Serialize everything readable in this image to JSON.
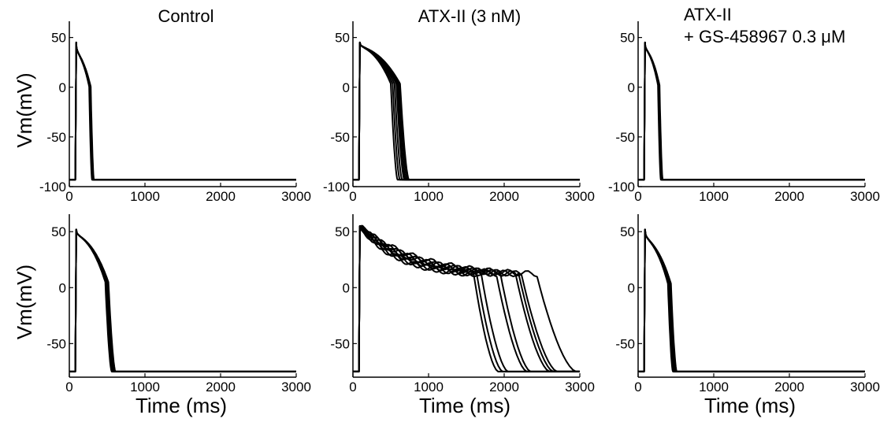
{
  "colors": {
    "trace": "#000000",
    "background": "#ffffff"
  },
  "chart_data": [
    {
      "type": "line",
      "panel": "top-left",
      "row": 0,
      "col": 0,
      "title_lines": [
        "Control"
      ],
      "xlabel": "",
      "ylabel": "Vm(mV)",
      "xlim": [
        0,
        3000
      ],
      "ylim": [
        -100,
        60
      ],
      "xticks": [
        0,
        1000,
        2000,
        3000
      ],
      "xtick_labels": [
        "0",
        "1000",
        "2000",
        "3000"
      ],
      "yticks": [
        50,
        0,
        -50,
        -100
      ],
      "ytick_labels": [
        "50",
        "0",
        "-50",
        "-100"
      ],
      "stim_time": 80,
      "rest": -93,
      "peak": 45,
      "plateau": 25,
      "apd_ms": [
        300,
        305,
        310,
        315,
        320,
        325
      ]
    },
    {
      "type": "line",
      "panel": "top-middle",
      "row": 0,
      "col": 1,
      "title_lines": [
        "ATX-II (3 nM)"
      ],
      "xlabel": "",
      "ylabel": "",
      "xlim": [
        0,
        3000
      ],
      "ylim": [
        -100,
        60
      ],
      "xticks": [
        0,
        1000,
        2000,
        3000
      ],
      "xtick_labels": [
        "0",
        "1000",
        "2000",
        "3000"
      ],
      "yticks": [
        50,
        0,
        -50,
        -100
      ],
      "ytick_labels": [
        "50",
        "0",
        "-50",
        "-100"
      ],
      "stim_time": 80,
      "rest": -93,
      "peak": 45,
      "plateau": 35,
      "apd_ms": [
        590,
        620,
        650,
        680,
        700,
        720,
        740
      ]
    },
    {
      "type": "line",
      "panel": "top-right",
      "row": 0,
      "col": 2,
      "title_lines": [
        "ATX-II",
        "+ GS-458967 0.3 μM"
      ],
      "xlabel": "",
      "ylabel": "",
      "xlim": [
        0,
        3000
      ],
      "ylim": [
        -100,
        60
      ],
      "xticks": [
        0,
        1000,
        2000,
        3000
      ],
      "xtick_labels": [
        "0",
        "1000",
        "2000",
        "3000"
      ],
      "yticks": [
        50,
        0,
        -50,
        -100
      ],
      "ytick_labels": [
        "50",
        "0",
        "-50",
        "-100"
      ],
      "stim_time": 80,
      "rest": -93,
      "peak": 45,
      "plateau": 30,
      "apd_ms": [
        300,
        305,
        310,
        315,
        320,
        325
      ]
    },
    {
      "type": "line",
      "panel": "bottom-left",
      "row": 1,
      "col": 0,
      "title_lines": [],
      "xlabel": "Time (ms)",
      "ylabel": "Vm(mV)",
      "xlim": [
        0,
        3000
      ],
      "ylim": [
        -80,
        60
      ],
      "xticks": [
        0,
        1000,
        2000,
        3000
      ],
      "xtick_labels": [
        "0",
        "1000",
        "2000",
        "3000"
      ],
      "yticks": [
        50,
        0,
        -50
      ],
      "ytick_labels": [
        "50",
        "0",
        "-50"
      ],
      "stim_time": 80,
      "rest": -75,
      "peak": 52,
      "plateau": 40,
      "apd_ms": [
        560,
        570,
        580,
        590,
        600,
        610
      ]
    },
    {
      "type": "line",
      "panel": "bottom-middle",
      "row": 1,
      "col": 1,
      "title_lines": [],
      "xlabel": "Time (ms)",
      "ylabel": "",
      "xlim": [
        0,
        3000
      ],
      "ylim": [
        -80,
        60
      ],
      "xticks": [
        0,
        1000,
        2000,
        3000
      ],
      "xtick_labels": [
        "0",
        "1000",
        "2000",
        "3000"
      ],
      "yticks": [
        50,
        0,
        -50
      ],
      "ytick_labels": [
        "50",
        "0",
        "-50"
      ],
      "stim_time": 80,
      "rest": -75,
      "peak": 55,
      "plateau": 10,
      "apd_ms": [
        1920,
        1980,
        2050,
        2300,
        2350,
        2600,
        2650,
        2700,
        2950
      ]
    },
    {
      "type": "line",
      "panel": "bottom-right",
      "row": 1,
      "col": 2,
      "title_lines": [],
      "xlabel": "Time (ms)",
      "ylabel": "",
      "xlim": [
        0,
        3000
      ],
      "ylim": [
        -80,
        60
      ],
      "xticks": [
        0,
        1000,
        2000,
        3000
      ],
      "xtick_labels": [
        "0",
        "1000",
        "2000",
        "3000"
      ],
      "yticks": [
        50,
        0,
        -50
      ],
      "ytick_labels": [
        "50",
        "0",
        "-50"
      ],
      "stim_time": 80,
      "rest": -75,
      "peak": 52,
      "plateau": 35,
      "apd_ms": [
        460,
        470,
        480,
        490,
        500,
        510
      ]
    }
  ]
}
